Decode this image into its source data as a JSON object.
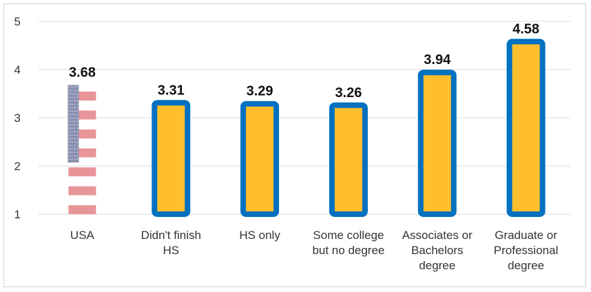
{
  "chart_data": {
    "type": "bar",
    "categories": [
      [
        "USA"
      ],
      [
        "Didn't finish",
        "HS"
      ],
      [
        "HS only"
      ],
      [
        "Some college",
        "but no degree"
      ],
      [
        "Associates or",
        "Bachelors",
        "degree"
      ],
      [
        "Graduate or",
        "Professional",
        "degree"
      ]
    ],
    "values": [
      3.68,
      3.31,
      3.29,
      3.26,
      3.94,
      4.58
    ],
    "data_labels": [
      "3.68",
      "3.31",
      "3.29",
      "3.26",
      "3.94",
      "4.58"
    ],
    "ylim": [
      1,
      5
    ],
    "yticks": [
      "1",
      "2",
      "3",
      "4",
      "5"
    ],
    "grid": true,
    "title": "",
    "xlabel": "",
    "ylabel": "",
    "colors": {
      "bar_fill": "#FFBF2D",
      "bar_border": "#0070C0",
      "flag_stripe": "#E8959A",
      "flag_canton": "#8A90B0",
      "grid": "#D9D9D9"
    }
  }
}
